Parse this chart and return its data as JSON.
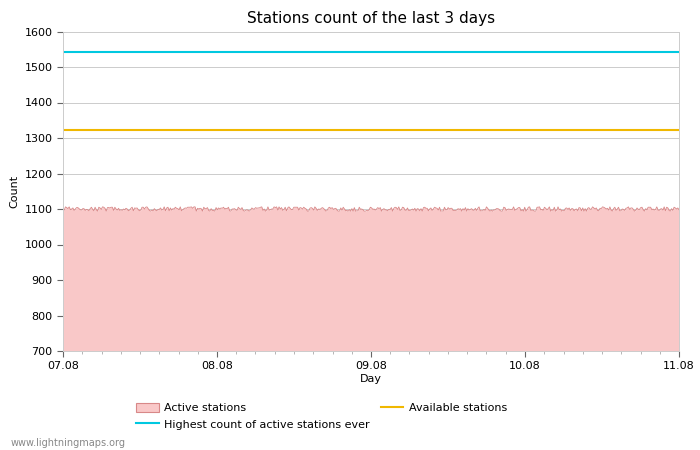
{
  "title": "Stations count of the last 3 days",
  "xlabel": "Day",
  "ylabel": "Count",
  "ylim": [
    700,
    1600
  ],
  "yticks": [
    700,
    800,
    900,
    1000,
    1100,
    1200,
    1300,
    1400,
    1500,
    1600
  ],
  "x_start": 0,
  "x_end": 96,
  "active_stations_value": 1100,
  "active_stations_noise": 6,
  "highest_count_ever": 1543,
  "available_stations": 1322,
  "active_fill_color": "#f9c8c8",
  "active_line_color": "#d88888",
  "highest_line_color": "#00c8e0",
  "available_line_color": "#f0b800",
  "background_color": "#ffffff",
  "grid_color": "#cccccc",
  "title_fontsize": 11,
  "axis_label_fontsize": 8,
  "tick_fontsize": 8,
  "watermark": "www.lightningmaps.org",
  "x_tick_labels": [
    "07.08",
    "08.08",
    "09.08",
    "10.08",
    "11.08"
  ],
  "x_tick_positions": [
    0,
    24,
    48,
    72,
    96
  ]
}
